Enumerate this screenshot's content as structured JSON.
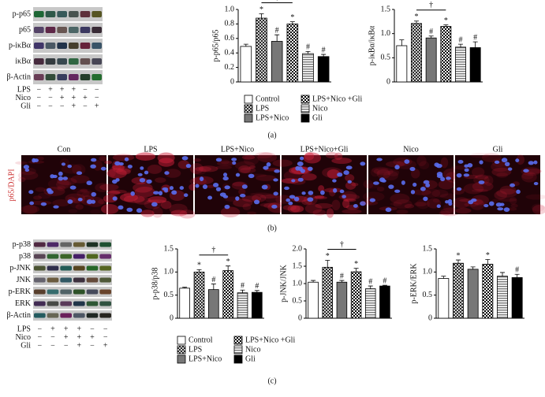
{
  "chart_data": [
    {
      "type": "bar",
      "ylabel": "p-p65/p65",
      "values": [
        0.49,
        0.88,
        0.56,
        0.8,
        0.39,
        0.35
      ],
      "errors": [
        0.03,
        0.06,
        0.09,
        0.03,
        0.03,
        0.03
      ],
      "annotations": [
        null,
        "*",
        "#",
        "*",
        "#",
        "#"
      ],
      "bracket_label": "†",
      "ylim": [
        0,
        1
      ],
      "yticks": [
        0,
        0.2,
        0.4,
        0.6,
        0.8,
        {
          "value": 1,
          "label": "1.0"
        }
      ]
    },
    {
      "type": "bar",
      "ylabel": "p-iκBα/iκBα",
      "values": [
        0.75,
        1.21,
        0.91,
        1.15,
        0.72,
        0.71
      ],
      "errors": [
        0.12,
        0.05,
        0.04,
        0.03,
        0.06,
        0.12
      ],
      "annotations": [
        null,
        "*",
        "#",
        "*",
        "#",
        "#"
      ],
      "bracket_label": "†",
      "ylim": [
        0,
        1.5
      ],
      "yticks": [
        0,
        0.5,
        {
          "value": 1,
          "label": "1.0"
        },
        1.5
      ]
    },
    {
      "type": "bar",
      "ylabel": "p-p38/p38",
      "values": [
        0.65,
        1.0,
        0.62,
        1.03,
        0.55,
        0.56
      ],
      "errors": [
        0.02,
        0.05,
        0.12,
        0.1,
        0.06,
        0.04
      ],
      "annotations": [
        null,
        "*",
        "#",
        "*",
        "#",
        "#"
      ],
      "bracket_label": "†",
      "ylim": [
        0,
        1.5
      ],
      "yticks": [
        0,
        0.5,
        {
          "value": 1,
          "label": "1.0"
        },
        1.5
      ]
    },
    {
      "type": "bar",
      "ylabel": "p-JNK/JNK",
      "values": [
        1.04,
        1.47,
        1.04,
        1.34,
        0.85,
        0.93
      ],
      "errors": [
        0.05,
        0.2,
        0.05,
        0.1,
        0.08,
        0.02
      ],
      "annotations": [
        null,
        "*",
        "#",
        "*",
        "#",
        "#"
      ],
      "bracket_label": "†",
      "ylim": [
        0,
        2
      ],
      "yticks": [
        0,
        0.5,
        {
          "value": 1,
          "label": "1.0"
        },
        1.5,
        {
          "value": 2,
          "label": "2.0"
        }
      ]
    },
    {
      "type": "bar",
      "ylabel": "p-ERK/ERK",
      "values": [
        0.86,
        1.19,
        1.06,
        1.17,
        0.91,
        0.88
      ],
      "errors": [
        0.05,
        0.07,
        0.05,
        0.1,
        0.08,
        0.07
      ],
      "annotations": [
        null,
        "*",
        null,
        "*",
        null,
        "#"
      ],
      "ylim": [
        0,
        1.5
      ],
      "yticks": [
        0,
        0.5,
        {
          "value": 1,
          "label": "1.0"
        },
        1.5
      ]
    }
  ],
  "panel_a": {
    "label": "(a)",
    "blot": {
      "rows": [
        "p-p65",
        "p65",
        "p-iκBα",
        "iκBα",
        "β-Actin"
      ],
      "treatments": [
        {
          "name": "LPS",
          "signs": [
            "−",
            "+",
            "+",
            "+",
            "−",
            "−"
          ]
        },
        {
          "name": "Nico",
          "signs": [
            "−",
            "−",
            "+",
            "+",
            "+",
            "−"
          ]
        },
        {
          "name": "Gli",
          "signs": [
            "−",
            "−",
            "−",
            "+",
            "−",
            "+"
          ]
        }
      ]
    },
    "legend": [
      "Control",
      "LPS",
      "LPS+Nico",
      "LPS+Nico +Gli",
      "Nico",
      "Gli"
    ]
  },
  "panel_b": {
    "label": "(b)",
    "ylabel": "p65/DAPI",
    "images": [
      "Con",
      "LPS",
      "LPS+Nico",
      "LPS+Nico+Gli",
      "Nico",
      "Gli"
    ]
  },
  "panel_c": {
    "label": "(c)",
    "blot": {
      "rows": [
        "p-p38",
        "p38",
        "p-JNK",
        "JNK",
        "p-ERK",
        "ERK",
        "β-Actin"
      ],
      "treatments": [
        {
          "name": "LPS",
          "signs": [
            "−",
            "+",
            "+",
            "+",
            "−",
            "−"
          ]
        },
        {
          "name": "Nico",
          "signs": [
            "−",
            "−",
            "+",
            "+",
            "+",
            "−"
          ]
        },
        {
          "name": "Gli",
          "signs": [
            "−",
            "−",
            "−",
            "+",
            "−",
            "+"
          ]
        }
      ]
    },
    "legend": [
      "Control",
      "LPS",
      "LPS+Nico",
      "LPS+Nico +Gli",
      "Nico",
      "Gli"
    ]
  }
}
